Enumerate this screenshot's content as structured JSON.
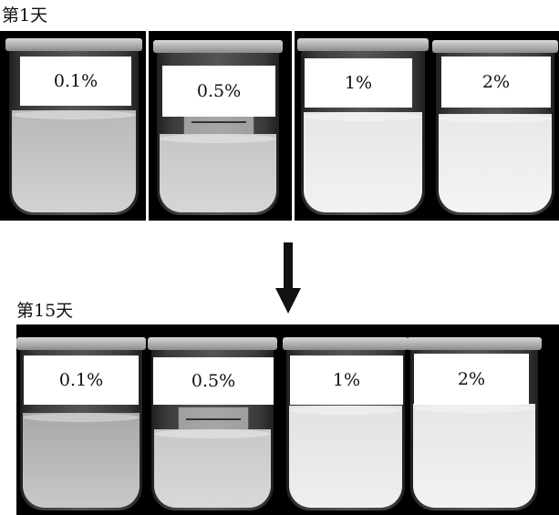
{
  "day1_label": "第1天",
  "day15_label": "第15天",
  "row1": [
    {
      "label": "0.1%"
    },
    {
      "label": "0.5%"
    },
    {
      "label": "1%"
    },
    {
      "label": "2%"
    }
  ],
  "row2": [
    {
      "label": "0.1%"
    },
    {
      "label": "0.5%"
    },
    {
      "label": "1%"
    },
    {
      "label": "2%"
    }
  ],
  "colors": {
    "background": "#000000",
    "liquid_clear": "#c9c9c9",
    "liquid_white": "#ededed",
    "label_bg": "#ffffff"
  }
}
